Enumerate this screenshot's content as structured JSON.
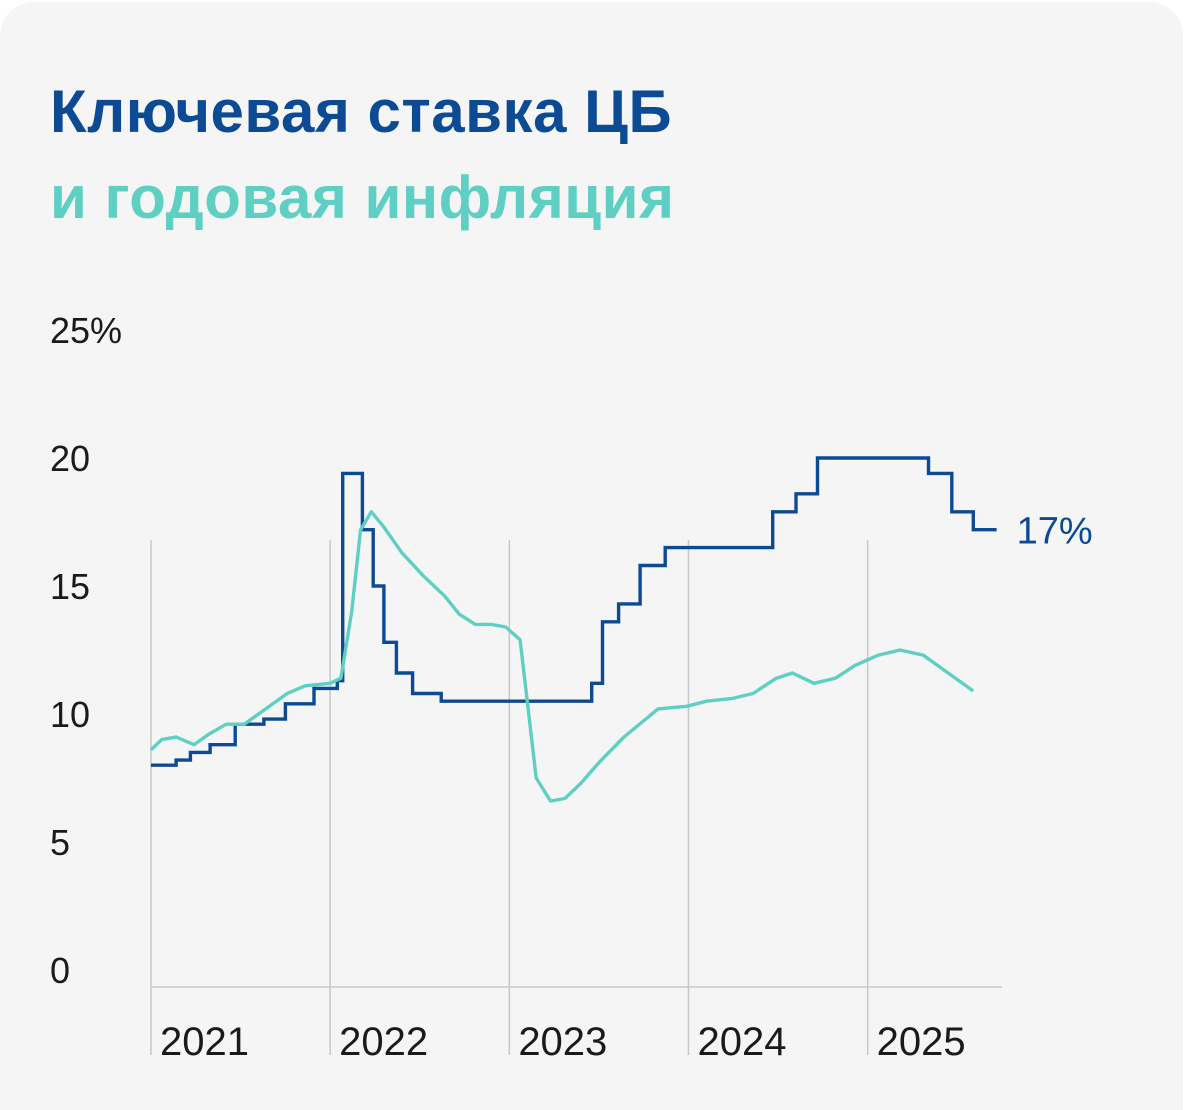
{
  "title": "Ключевая ставка ЦБ",
  "subtitle": "и годовая инфляция",
  "colors": {
    "key_rate": "#0d4a94",
    "inflation": "#5ecfc2",
    "grid": "#c8c8cc",
    "text": "#1a1a1a"
  },
  "chart_data": {
    "type": "line",
    "title": "Ключевая ставка ЦБ",
    "subtitle": "и годовая инфляция",
    "ylim": [
      0,
      25
    ],
    "y_ticks": [
      {
        "value": 25,
        "label": "25%"
      },
      {
        "value": 20,
        "label": "20"
      },
      {
        "value": 15,
        "label": "15"
      },
      {
        "value": 10,
        "label": "10"
      },
      {
        "value": 5,
        "label": "5"
      },
      {
        "value": 0,
        "label": "0"
      }
    ],
    "xlim": [
      2021.0,
      2025.75
    ],
    "x_ticks": [
      {
        "value": 2021,
        "label": "2021"
      },
      {
        "value": 2022,
        "label": "2022"
      },
      {
        "value": 2023,
        "label": "2023"
      },
      {
        "value": 2024,
        "label": "2024"
      },
      {
        "value": 2025,
        "label": "2025"
      }
    ],
    "series": [
      {
        "key": "key_rate",
        "step": true,
        "end_label": "17%",
        "points": [
          [
            2021.0,
            8.0
          ],
          [
            2021.14,
            8.2
          ],
          [
            2021.22,
            8.5
          ],
          [
            2021.33,
            8.8
          ],
          [
            2021.47,
            9.6
          ],
          [
            2021.63,
            9.8
          ],
          [
            2021.75,
            10.4
          ],
          [
            2021.91,
            11.0
          ],
          [
            2022.04,
            11.3
          ],
          [
            2022.07,
            19.4
          ],
          [
            2022.18,
            17.2
          ],
          [
            2022.24,
            15.0
          ],
          [
            2022.3,
            12.8
          ],
          [
            2022.37,
            11.6
          ],
          [
            2022.46,
            10.8
          ],
          [
            2022.62,
            10.5
          ],
          [
            2023.46,
            11.2
          ],
          [
            2023.52,
            13.6
          ],
          [
            2023.61,
            14.3
          ],
          [
            2023.73,
            15.8
          ],
          [
            2023.87,
            16.5
          ],
          [
            2024.47,
            17.9
          ],
          [
            2024.6,
            18.6
          ],
          [
            2024.72,
            20.0
          ],
          [
            2025.34,
            19.4
          ],
          [
            2025.47,
            17.9
          ],
          [
            2025.59,
            17.2
          ],
          [
            2025.72,
            17.2
          ]
        ]
      },
      {
        "key": "inflation",
        "step": false,
        "points": [
          [
            2021.0,
            8.6
          ],
          [
            2021.06,
            9.0
          ],
          [
            2021.14,
            9.1
          ],
          [
            2021.24,
            8.8
          ],
          [
            2021.32,
            9.2
          ],
          [
            2021.42,
            9.6
          ],
          [
            2021.52,
            9.6
          ],
          [
            2021.64,
            10.2
          ],
          [
            2021.76,
            10.8
          ],
          [
            2021.86,
            11.1
          ],
          [
            2022.0,
            11.2
          ],
          [
            2022.06,
            11.4
          ],
          [
            2022.12,
            14.0
          ],
          [
            2022.17,
            17.2
          ],
          [
            2022.23,
            17.9
          ],
          [
            2022.3,
            17.3
          ],
          [
            2022.4,
            16.3
          ],
          [
            2022.52,
            15.4
          ],
          [
            2022.64,
            14.6
          ],
          [
            2022.72,
            13.9
          ],
          [
            2022.81,
            13.5
          ],
          [
            2022.9,
            13.5
          ],
          [
            2022.98,
            13.4
          ],
          [
            2023.06,
            12.9
          ],
          [
            2023.15,
            7.5
          ],
          [
            2023.23,
            6.6
          ],
          [
            2023.31,
            6.7
          ],
          [
            2023.4,
            7.3
          ],
          [
            2023.5,
            8.1
          ],
          [
            2023.64,
            9.1
          ],
          [
            2023.83,
            10.2
          ],
          [
            2023.99,
            10.3
          ],
          [
            2024.1,
            10.5
          ],
          [
            2024.24,
            10.6
          ],
          [
            2024.36,
            10.8
          ],
          [
            2024.49,
            11.4
          ],
          [
            2024.58,
            11.6
          ],
          [
            2024.7,
            11.2
          ],
          [
            2024.82,
            11.4
          ],
          [
            2024.93,
            11.9
          ],
          [
            2025.06,
            12.3
          ],
          [
            2025.18,
            12.5
          ],
          [
            2025.31,
            12.3
          ],
          [
            2025.47,
            11.5
          ],
          [
            2025.59,
            10.9
          ]
        ]
      }
    ]
  }
}
